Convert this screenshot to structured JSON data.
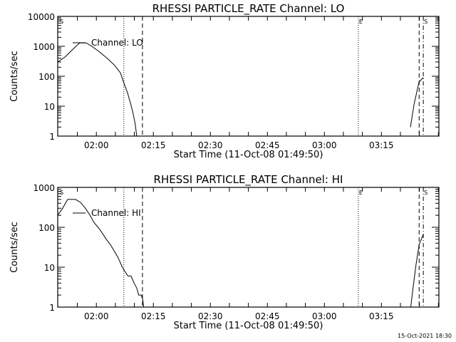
{
  "timestamp": "15-Oct-2021 18:30",
  "chart_data": [
    {
      "type": "line",
      "title": "RHESSI PARTICLE_RATE Channel: LO",
      "xlabel": "Start Time (11-Oct-08 01:49:50)",
      "ylabel": "Counts/sec",
      "yscale": "log",
      "ylim": [
        1,
        10000
      ],
      "ytick_labels": [
        "1",
        "10",
        "100",
        "1000",
        "10000"
      ],
      "ytick_values": [
        1,
        10,
        100,
        1000,
        10000
      ],
      "x_unit": "minutes since 01:49:50",
      "xlim": [
        0,
        100.3
      ],
      "xtick_labels": [
        "02:00",
        "02:15",
        "02:30",
        "02:45",
        "03:00",
        "03:15"
      ],
      "xtick_values": [
        10.17,
        25.17,
        40.17,
        55.17,
        70.17,
        85.17
      ],
      "legend": "Channel: LO",
      "series": [
        {
          "name": "Channel: LO",
          "segments": [
            [
              [
                0,
                300
              ],
              [
                2,
                450
              ],
              [
                4,
                800
              ],
              [
                5.8,
                1300
              ],
              [
                7.5,
                1300
              ],
              [
                9,
                1000
              ],
              [
                11,
                650
              ],
              [
                13,
                400
              ],
              [
                15,
                230
              ],
              [
                16.5,
                130
              ],
              [
                17.4,
                60
              ],
              [
                18.3,
                30
              ],
              [
                19.2,
                12
              ],
              [
                19.8,
                6
              ],
              [
                20.4,
                2.5
              ],
              [
                20.8,
                1
              ]
            ],
            [
              [
                92.8,
                2
              ],
              [
                93.8,
                12
              ],
              [
                94.6,
                35
              ],
              [
                95.1,
                65
              ],
              [
                96.2,
                90
              ]
            ]
          ]
        }
      ],
      "markers": [
        {
          "label": "S",
          "minute": 0,
          "style": "none"
        },
        {
          "label": "",
          "minute": 17.4,
          "style": "dotted"
        },
        {
          "label": "",
          "minute": 22.3,
          "style": "dashed"
        },
        {
          "label": "E",
          "minute": 79.1,
          "style": "dotted"
        },
        {
          "label": "",
          "minute": 95.1,
          "style": "dashed"
        },
        {
          "label": "S",
          "minute": 96.2,
          "style": "dashdot"
        }
      ]
    },
    {
      "type": "line",
      "title": "RHESSI PARTICLE_RATE Channel: HI",
      "xlabel": "Start Time (11-Oct-08 01:49:50)",
      "ylabel": "Counts/sec",
      "yscale": "log",
      "ylim": [
        1,
        1000
      ],
      "ytick_labels": [
        "1",
        "10",
        "100",
        "1000"
      ],
      "ytick_values": [
        1,
        10,
        100,
        1000
      ],
      "x_unit": "minutes since 01:49:50",
      "xlim": [
        0,
        100.3
      ],
      "xtick_labels": [
        "02:00",
        "02:15",
        "02:30",
        "02:45",
        "03:00",
        "03:15"
      ],
      "xtick_values": [
        10.17,
        25.17,
        40.17,
        55.17,
        70.17,
        85.17
      ],
      "legend": "Channel: HI",
      "series": [
        {
          "name": "Channel: HI",
          "segments": [
            [
              [
                0,
                200
              ],
              [
                1.3,
                300
              ],
              [
                2.6,
                500
              ],
              [
                4.7,
                500
              ],
              [
                6,
                420
              ],
              [
                7.3,
                300
              ],
              [
                8.5,
                200
              ],
              [
                9.6,
                130
              ],
              [
                11,
                90
              ],
              [
                12.8,
                50
              ],
              [
                14,
                35
              ],
              [
                15.8,
                18
              ],
              [
                17,
                10
              ],
              [
                17.6,
                8
              ],
              [
                18.5,
                6
              ],
              [
                19.3,
                6
              ],
              [
                20.1,
                4
              ],
              [
                20.8,
                3
              ],
              [
                21.3,
                2
              ],
              [
                22.0,
                2
              ],
              [
                22.4,
                1.5
              ],
              [
                22.6,
                1
              ]
            ],
            [
              [
                92.9,
                1
              ],
              [
                93.5,
                3
              ],
              [
                94.3,
                12
              ],
              [
                95.1,
                37
              ],
              [
                96.2,
                66
              ]
            ]
          ]
        }
      ],
      "markers": [
        {
          "label": "S",
          "minute": 0,
          "style": "none"
        },
        {
          "label": "",
          "minute": 17.4,
          "style": "dotted"
        },
        {
          "label": "",
          "minute": 22.3,
          "style": "dashed"
        },
        {
          "label": "E",
          "minute": 79.1,
          "style": "dotted"
        },
        {
          "label": "",
          "minute": 95.1,
          "style": "dashed"
        },
        {
          "label": "S",
          "minute": 96.2,
          "style": "dashdot"
        }
      ]
    }
  ]
}
